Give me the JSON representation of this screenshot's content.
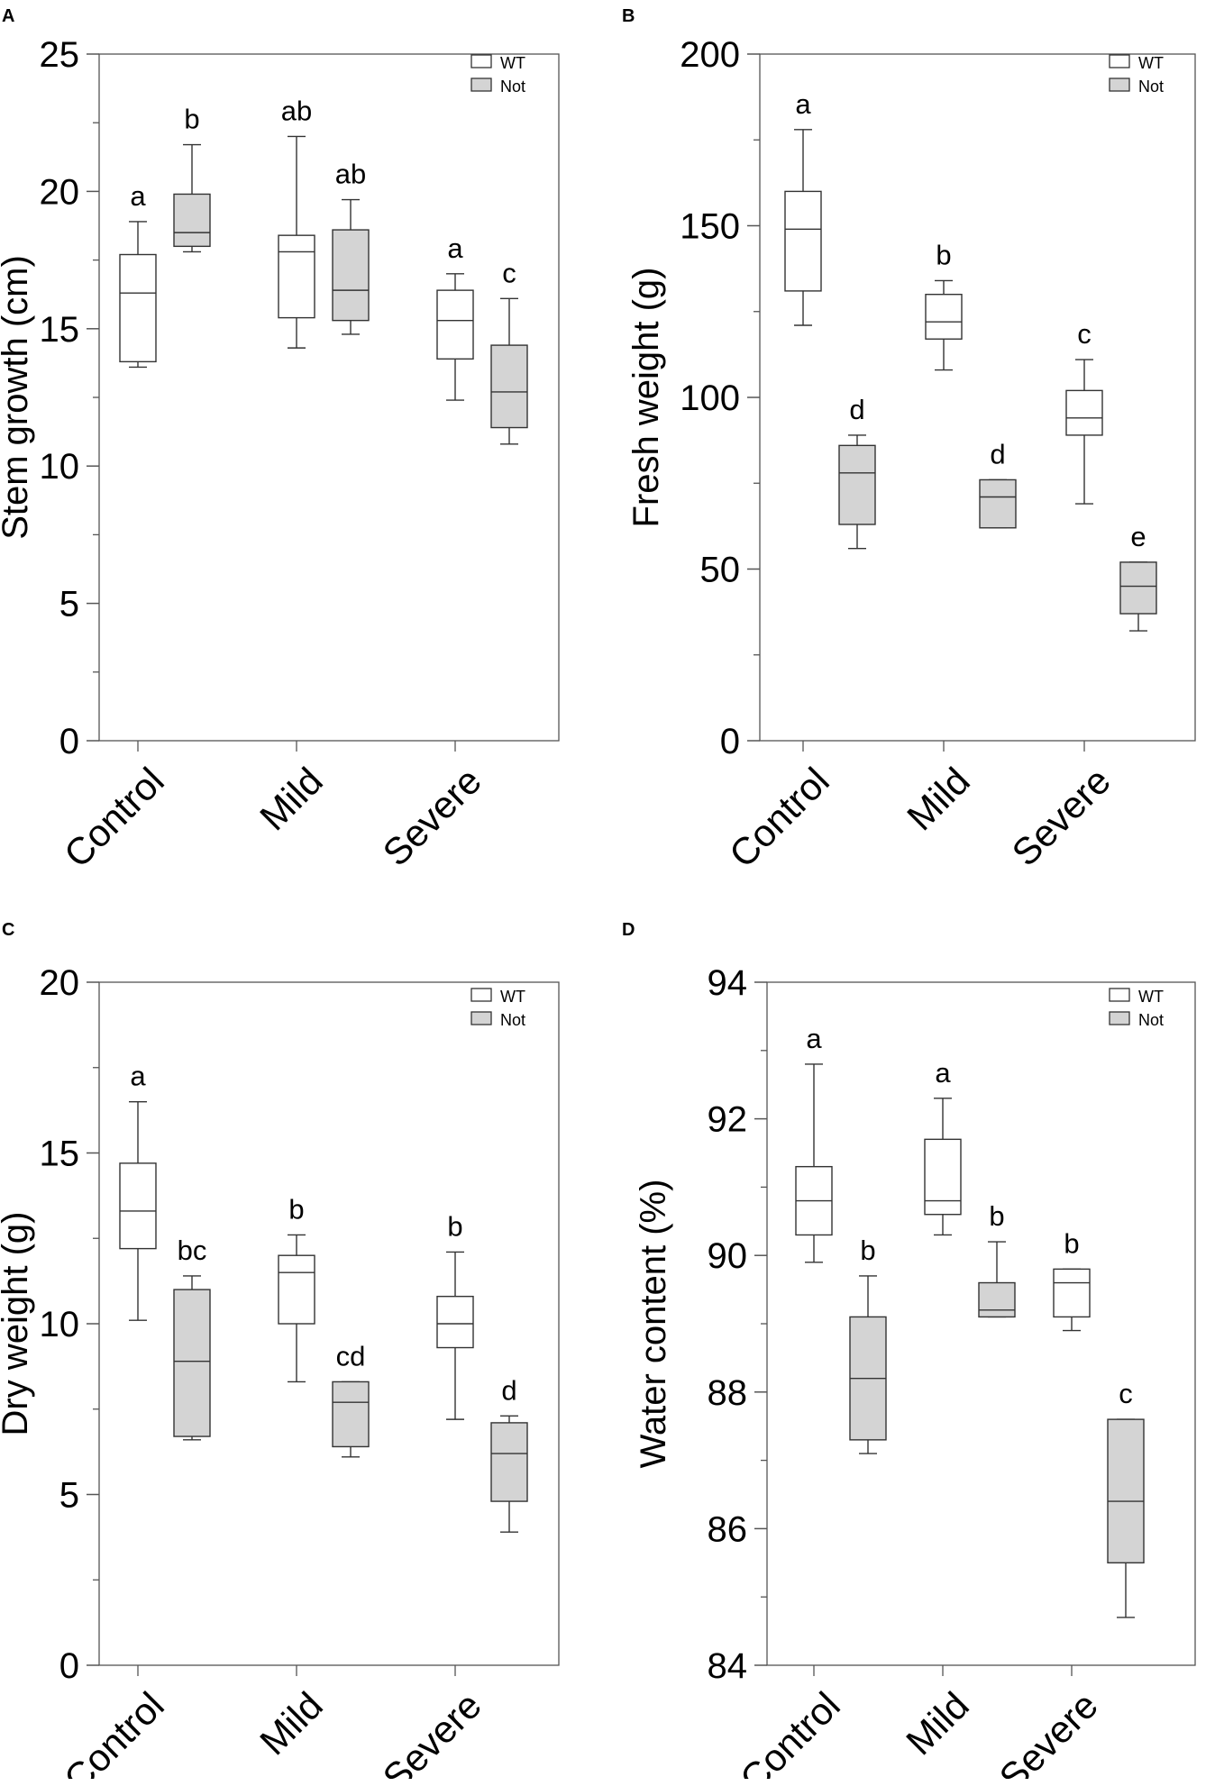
{
  "colors": {
    "wt_fill": "#ffffff",
    "not_fill": "#d4d4d4",
    "stroke": "#333333",
    "text": "#000000"
  },
  "chart_data": [
    {
      "panel": "A",
      "type": "boxplot",
      "ylabel": "Stem growth (cm)",
      "ylim": [
        0,
        25
      ],
      "yticks": [
        0,
        5,
        10,
        15,
        20,
        25
      ],
      "minor_step": 2.5,
      "categories": [
        "Control",
        "Mild",
        "Severe"
      ],
      "legend": [
        "WT",
        "Not"
      ],
      "legend_position": "top-right",
      "series": [
        {
          "name": "WT",
          "boxes": [
            {
              "min": 13.6,
              "q1": 13.8,
              "median": 16.3,
              "q3": 17.7,
              "max": 18.9,
              "label": "a"
            },
            {
              "min": 14.3,
              "q1": 15.4,
              "median": 17.8,
              "q3": 18.4,
              "max": 22.0,
              "label": "ab"
            },
            {
              "min": 12.4,
              "q1": 13.9,
              "median": 15.3,
              "q3": 16.4,
              "max": 17.0,
              "label": "a"
            }
          ]
        },
        {
          "name": "Not",
          "boxes": [
            {
              "min": 17.8,
              "q1": 18.0,
              "median": 18.5,
              "q3": 19.9,
              "max": 21.7,
              "label": "b"
            },
            {
              "min": 14.8,
              "q1": 15.3,
              "median": 16.4,
              "q3": 18.6,
              "max": 19.7,
              "label": "ab"
            },
            {
              "min": 10.8,
              "q1": 11.4,
              "median": 12.7,
              "q3": 14.4,
              "max": 16.1,
              "label": "c"
            }
          ]
        }
      ]
    },
    {
      "panel": "B",
      "type": "boxplot",
      "ylabel": "Fresh weight (g)",
      "ylim": [
        0,
        200
      ],
      "yticks": [
        0,
        50,
        100,
        150,
        200
      ],
      "minor_step": 25,
      "categories": [
        "Control",
        "Mild",
        "Severe"
      ],
      "legend": [
        "WT",
        "Not"
      ],
      "legend_position": "top-right",
      "series": [
        {
          "name": "WT",
          "boxes": [
            {
              "min": 121,
              "q1": 131,
              "median": 149,
              "q3": 160,
              "max": 178,
              "label": "a"
            },
            {
              "min": 108,
              "q1": 117,
              "median": 122,
              "q3": 130,
              "max": 134,
              "label": "b"
            },
            {
              "min": 69,
              "q1": 89,
              "median": 94,
              "q3": 102,
              "max": 111,
              "label": "c"
            }
          ]
        },
        {
          "name": "Not",
          "boxes": [
            {
              "min": 56,
              "q1": 63,
              "median": 78,
              "q3": 86,
              "max": 89,
              "label": "d"
            },
            {
              "min": 62,
              "q1": 62,
              "median": 71,
              "q3": 76,
              "max": 76,
              "label": "d"
            },
            {
              "min": 32,
              "q1": 37,
              "median": 45,
              "q3": 52,
              "max": 52,
              "label": "e"
            }
          ]
        }
      ]
    },
    {
      "panel": "C",
      "type": "boxplot",
      "ylabel": "Dry weight (g)",
      "ylim": [
        0,
        20
      ],
      "yticks": [
        0,
        5,
        10,
        15,
        20
      ],
      "minor_step": 2.5,
      "categories": [
        "Control",
        "Mild",
        "Severe"
      ],
      "legend": [
        "WT",
        "Not"
      ],
      "legend_position": "top-right",
      "series": [
        {
          "name": "WT",
          "boxes": [
            {
              "min": 10.1,
              "q1": 12.2,
              "median": 13.3,
              "q3": 14.7,
              "max": 16.5,
              "label": "a"
            },
            {
              "min": 8.3,
              "q1": 10.0,
              "median": 11.5,
              "q3": 12.0,
              "max": 12.6,
              "label": "b"
            },
            {
              "min": 7.2,
              "q1": 9.3,
              "median": 10.0,
              "q3": 10.8,
              "max": 12.1,
              "label": "b"
            }
          ]
        },
        {
          "name": "Not",
          "boxes": [
            {
              "min": 6.6,
              "q1": 6.7,
              "median": 8.9,
              "q3": 11.0,
              "max": 11.4,
              "label": "bc"
            },
            {
              "min": 6.1,
              "q1": 6.4,
              "median": 7.7,
              "q3": 8.3,
              "max": 8.3,
              "label": "cd"
            },
            {
              "min": 3.9,
              "q1": 4.8,
              "median": 6.2,
              "q3": 7.1,
              "max": 7.3,
              "label": "d"
            }
          ]
        }
      ]
    },
    {
      "panel": "D",
      "type": "boxplot",
      "ylabel": "Water content (%)",
      "ylim": [
        84,
        94
      ],
      "yticks": [
        84,
        86,
        88,
        90,
        92,
        94
      ],
      "minor_step": 1,
      "categories": [
        "Control",
        "Mild",
        "Severe"
      ],
      "legend": [
        "WT",
        "Not"
      ],
      "legend_position": "top-right",
      "series": [
        {
          "name": "WT",
          "boxes": [
            {
              "min": 89.9,
              "q1": 90.3,
              "median": 90.8,
              "q3": 91.3,
              "max": 92.8,
              "label": "a"
            },
            {
              "min": 90.3,
              "q1": 90.6,
              "median": 90.8,
              "q3": 91.7,
              "max": 92.3,
              "label": "a"
            },
            {
              "min": 88.9,
              "q1": 89.1,
              "median": 89.6,
              "q3": 89.8,
              "max": 89.8,
              "label": "b"
            }
          ]
        },
        {
          "name": "Not",
          "boxes": [
            {
              "min": 87.1,
              "q1": 87.3,
              "median": 88.2,
              "q3": 89.1,
              "max": 89.7,
              "label": "b"
            },
            {
              "min": 89.1,
              "q1": 89.1,
              "median": 89.2,
              "q3": 89.6,
              "max": 90.2,
              "label": "b"
            },
            {
              "min": 84.7,
              "q1": 85.5,
              "median": 86.4,
              "q3": 87.6,
              "max": 87.6,
              "label": "c"
            }
          ]
        }
      ]
    }
  ]
}
